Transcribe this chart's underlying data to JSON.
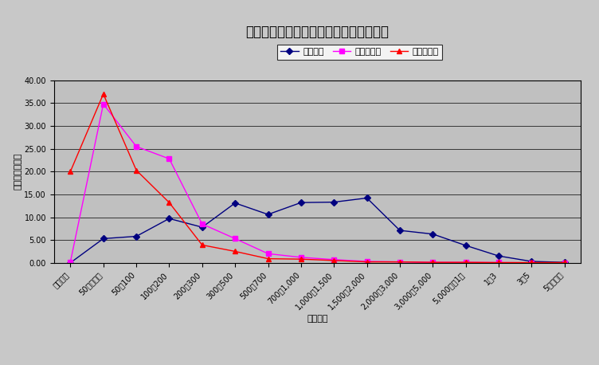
{
  "title": "図８　主副業・販売金額別農家構成割合",
  "xlabel": "販売金額",
  "ylabel": "構成割合（％）",
  "categories": [
    "販売なし",
    "50万円未満",
    "50～100",
    "100～200",
    "200～300",
    "300～500",
    "500～700",
    "700～1,000",
    "1,000～1,500",
    "1,500～2,000",
    "2,000～3,000",
    "3,000～5,000",
    "5,000万～1億",
    "1～3",
    "3～5",
    "5億円以上"
  ],
  "series": [
    {
      "name": "主業農家",
      "color": "#000080",
      "marker": "D",
      "marker_color": "#000080",
      "values": [
        0.0,
        5.3,
        5.8,
        9.7,
        7.8,
        13.1,
        10.6,
        13.2,
        13.3,
        14.2,
        7.1,
        6.3,
        3.8,
        1.5,
        0.3,
        0.1
      ]
    },
    {
      "name": "準主業農家",
      "color": "#FF00FF",
      "marker": "s",
      "marker_color": "#FF00FF",
      "values": [
        0.2,
        34.8,
        25.5,
        22.8,
        8.5,
        5.3,
        2.0,
        1.2,
        0.7,
        0.3,
        0.2,
        0.1,
        0.1,
        0.05,
        0.0,
        0.0
      ]
    },
    {
      "name": "副業的農家",
      "color": "#FF0000",
      "marker": "^",
      "marker_color": "#FF0000",
      "values": [
        20.0,
        37.0,
        20.3,
        13.2,
        3.9,
        2.5,
        0.9,
        0.8,
        0.5,
        0.2,
        0.2,
        0.1,
        0.1,
        0.05,
        0.05,
        0.05
      ]
    }
  ],
  "ylim": [
    0,
    40.0
  ],
  "yticks": [
    0.0,
    5.0,
    10.0,
    15.0,
    20.0,
    25.0,
    30.0,
    35.0,
    40.0
  ],
  "fig_bg_color": "#C8C8C8",
  "plot_bg_color": "#C0C0C0",
  "title_fontsize": 12,
  "axis_fontsize": 8,
  "tick_fontsize": 7,
  "legend_fontsize": 8
}
